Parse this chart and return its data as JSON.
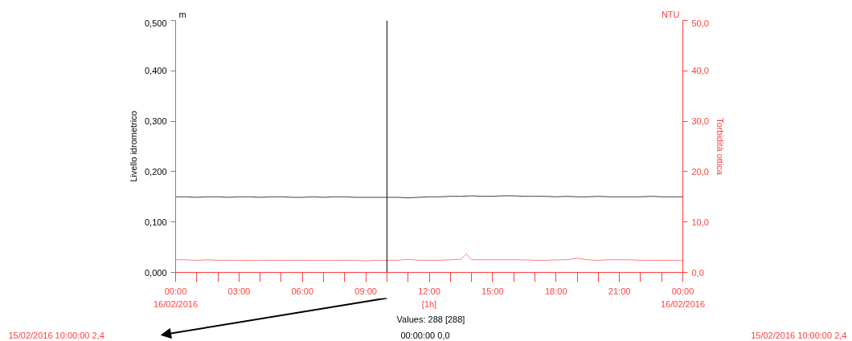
{
  "chart_data": {
    "type": "line",
    "ylabel": "Livello idrometrico",
    "y2label": "Torbidità ottica",
    "xlim": [
      0,
      24
    ],
    "xticks": [
      {
        "value": 0,
        "label": "00:00"
      },
      {
        "value": 1,
        "label": null
      },
      {
        "value": 2,
        "label": null
      },
      {
        "value": 3,
        "label": "03:00"
      },
      {
        "value": 4,
        "label": null
      },
      {
        "value": 5,
        "label": null
      },
      {
        "value": 6,
        "label": "06:00"
      },
      {
        "value": 7,
        "label": null
      },
      {
        "value": 8,
        "label": null
      },
      {
        "value": 9,
        "label": "09:00"
      },
      {
        "value": 10,
        "label": null
      },
      {
        "value": 11,
        "label": null
      },
      {
        "value": 12,
        "label": "12:00"
      },
      {
        "value": 13,
        "label": null
      },
      {
        "value": 14,
        "label": null
      },
      {
        "value": 15,
        "label": "15:00"
      },
      {
        "value": 16,
        "label": null
      },
      {
        "value": 17,
        "label": null
      },
      {
        "value": 18,
        "label": "18:00"
      },
      {
        "value": 19,
        "label": null
      },
      {
        "value": 20,
        "label": null
      },
      {
        "value": 21,
        "label": "21:00"
      },
      {
        "value": 22,
        "label": null
      },
      {
        "value": 23,
        "label": null
      },
      {
        "value": 24,
        "label": "00:00"
      }
    ],
    "ylim": [
      0,
      0.5
    ],
    "yticks": [
      {
        "value": 0,
        "label": "0,000"
      },
      {
        "value": 0.1,
        "label": "0,100"
      },
      {
        "value": 0.2,
        "label": "0,200"
      },
      {
        "value": 0.3,
        "label": "0,300"
      },
      {
        "value": 0.4,
        "label": "0,400"
      },
      {
        "value": 0.5,
        "label": "0,500"
      }
    ],
    "y2lim": [
      0,
      50
    ],
    "y2ticks": [
      {
        "value": 0,
        "label": "0,0"
      },
      {
        "value": 10,
        "label": "10,0"
      },
      {
        "value": 20,
        "label": "20,0"
      },
      {
        "value": 30,
        "label": "30,0"
      },
      {
        "value": 40,
        "label": "40,0"
      },
      {
        "value": 50,
        "label": "50,0"
      }
    ],
    "grid": false,
    "series": [
      {
        "color": "#404040",
        "x": [
          0,
          0.5,
          1,
          1.5,
          2,
          2.5,
          3,
          3.5,
          4,
          4.5,
          5,
          5.5,
          6,
          6.5,
          7,
          7.5,
          8,
          8.5,
          9,
          9.5,
          10,
          10.5,
          11,
          11.5,
          12,
          12.5,
          13,
          13.5,
          14,
          14.5,
          15,
          15.5,
          16,
          16.5,
          17,
          17.5,
          18,
          18.5,
          19,
          19.5,
          20,
          20.5,
          21,
          21.5,
          22,
          22.5,
          23,
          23.5,
          24
        ],
        "values": [
          0.15,
          0.15,
          0.149,
          0.15,
          0.15,
          0.149,
          0.15,
          0.15,
          0.149,
          0.15,
          0.15,
          0.149,
          0.149,
          0.15,
          0.149,
          0.15,
          0.15,
          0.149,
          0.149,
          0.149,
          0.149,
          0.149,
          0.148,
          0.149,
          0.15,
          0.15,
          0.151,
          0.151,
          0.152,
          0.151,
          0.151,
          0.152,
          0.152,
          0.151,
          0.151,
          0.151,
          0.15,
          0.151,
          0.15,
          0.15,
          0.151,
          0.15,
          0.15,
          0.15,
          0.15,
          0.151,
          0.15,
          0.15,
          0.15
        ]
      },
      {
        "color": "#ff8080",
        "axis": "y2",
        "x": [
          0,
          0.5,
          1,
          1.5,
          2,
          2.5,
          3,
          3.5,
          4,
          4.5,
          5,
          5.5,
          6,
          6.5,
          7,
          7.5,
          8,
          8.5,
          9,
          9.5,
          10,
          10.5,
          11,
          11.5,
          12,
          12.5,
          13,
          13.5,
          13.75,
          14,
          14.5,
          15,
          15.5,
          16,
          16.5,
          17,
          17.5,
          18,
          18.5,
          19,
          19.5,
          20,
          20.5,
          21,
          21.5,
          22,
          22.5,
          23,
          23.5,
          24
        ],
        "values": [
          2.5,
          2.5,
          2.4,
          2.5,
          2.4,
          2.4,
          2.4,
          2.4,
          2.4,
          2.4,
          2.4,
          2.4,
          2.4,
          2.4,
          2.4,
          2.4,
          2.4,
          2.4,
          2.3,
          2.4,
          2.4,
          2.4,
          2.6,
          2.4,
          2.4,
          2.4,
          2.5,
          2.6,
          3.7,
          2.5,
          2.5,
          2.5,
          2.5,
          2.5,
          2.5,
          2.4,
          2.4,
          2.5,
          2.5,
          2.8,
          2.5,
          2.4,
          2.5,
          2.5,
          2.5,
          2.4,
          2.4,
          2.4,
          2.4,
          2.4
        ]
      }
    ],
    "ref_lines": [
      {
        "axis": "x",
        "value": 10,
        "color": "#000000"
      }
    ],
    "annotations": [
      "m",
      "NTU",
      "16/02/2016",
      "[1h]",
      "16/02/2016",
      "Values: 288 [288]",
      "15/02/2016 10:00:00  2,4",
      "00:00:00  0,0",
      "15/02/2016 10:00:00  2,4"
    ]
  }
}
